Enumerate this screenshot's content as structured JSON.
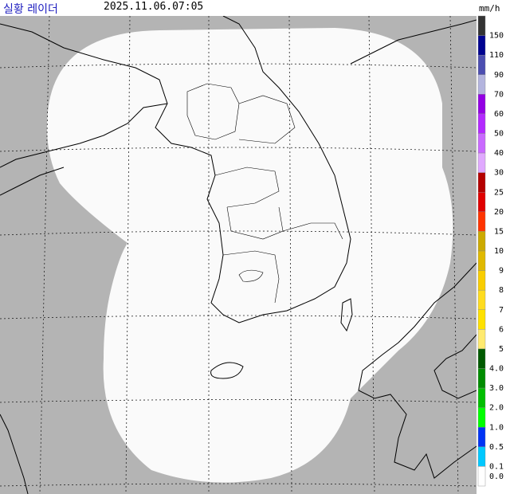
{
  "header": {
    "title": "실황 레이더",
    "timestamp": "2025.11.06.07:05",
    "unit": "mm/h"
  },
  "legend": [
    {
      "label": "150",
      "color": "#333333"
    },
    {
      "label": "110",
      "color": "#000390"
    },
    {
      "label": "90",
      "color": "#4c4eb1"
    },
    {
      "label": "70",
      "color": "#b3b4de"
    },
    {
      "label": "60",
      "color": "#9300e4"
    },
    {
      "label": "50",
      "color": "#b329ff"
    },
    {
      "label": "40",
      "color": "#c969ff"
    },
    {
      "label": "30",
      "color": "#e0a9ff"
    },
    {
      "label": "25",
      "color": "#b40000"
    },
    {
      "label": "20",
      "color": "#e00000"
    },
    {
      "label": "15",
      "color": "#ff3300"
    },
    {
      "label": "10",
      "color": "#ccaa00"
    },
    {
      "label": "9",
      "color": "#e0b900"
    },
    {
      "label": "8",
      "color": "#f9cd00"
    },
    {
      "label": "7",
      "color": "#ffdc1f"
    },
    {
      "label": "6",
      "color": "#ffe100"
    },
    {
      "label": "5",
      "color": "#ffea6e"
    },
    {
      "label": "4.0",
      "color": "#005a00"
    },
    {
      "label": "3.0",
      "color": "#008c00"
    },
    {
      "label": "2.0",
      "color": "#00be00"
    },
    {
      "label": "1.0",
      "color": "#00ff00"
    },
    {
      "label": "0.5",
      "color": "#0033f5"
    },
    {
      "label": "0.1",
      "color": "#00c8ff"
    },
    {
      "label": "0.0",
      "color": "#ffffff"
    }
  ]
}
